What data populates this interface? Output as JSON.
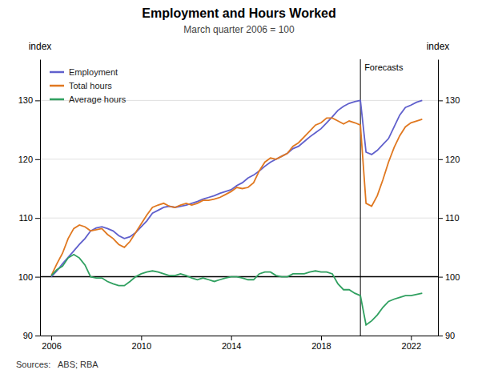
{
  "chart_data": {
    "type": "line",
    "title": "Employment and Hours Worked",
    "subtitle": "March quarter 2006 = 100",
    "ylabel": "index",
    "y2label": "index",
    "source": "Sources:   ABS; RBA",
    "xlim": [
      2005.5,
      2023.2
    ],
    "xticks": [
      2006,
      2010,
      2014,
      2018,
      2022
    ],
    "ylim": [
      90,
      137
    ],
    "yticks": [
      90,
      100,
      110,
      120,
      130
    ],
    "y2lim": [
      90,
      137
    ],
    "y2ticks": [
      90,
      100,
      110,
      120,
      130
    ],
    "grid": true,
    "legend": "top-left",
    "reference_lines": [
      {
        "y": 100
      },
      {
        "x": 2019.75,
        "label": "Forecasts"
      }
    ],
    "x": [
      2006.0,
      2006.25,
      2006.5,
      2006.75,
      2007.0,
      2007.25,
      2007.5,
      2007.75,
      2008.0,
      2008.25,
      2008.5,
      2008.75,
      2009.0,
      2009.25,
      2009.5,
      2009.75,
      2010.0,
      2010.25,
      2010.5,
      2010.75,
      2011.0,
      2011.25,
      2011.5,
      2011.75,
      2012.0,
      2012.25,
      2012.5,
      2012.75,
      2013.0,
      2013.25,
      2013.5,
      2013.75,
      2014.0,
      2014.25,
      2014.5,
      2014.75,
      2015.0,
      2015.25,
      2015.5,
      2015.75,
      2016.0,
      2016.25,
      2016.5,
      2016.75,
      2017.0,
      2017.25,
      2017.5,
      2017.75,
      2018.0,
      2018.25,
      2018.5,
      2018.75,
      2019.0,
      2019.25,
      2019.5,
      2019.75,
      2020.0,
      2020.25,
      2020.5,
      2020.75,
      2021.0,
      2021.25,
      2021.5,
      2021.75,
      2022.0,
      2022.25,
      2022.5
    ],
    "series": [
      {
        "name": "Employment",
        "color": "#6060CC",
        "values": [
          100.0,
          101.0,
          102.2,
          103.3,
          104.4,
          105.5,
          106.5,
          107.8,
          108.3,
          108.5,
          108.2,
          107.8,
          107.0,
          106.5,
          106.8,
          107.5,
          108.5,
          109.5,
          110.8,
          111.3,
          111.8,
          112.0,
          111.8,
          112.0,
          112.2,
          112.5,
          112.8,
          113.2,
          113.5,
          113.8,
          114.2,
          114.5,
          114.8,
          115.5,
          116.0,
          116.8,
          117.3,
          118.0,
          118.8,
          119.5,
          120.0,
          120.5,
          121.0,
          121.8,
          122.2,
          123.0,
          123.8,
          124.5,
          125.2,
          126.2,
          127.2,
          128.3,
          129.0,
          129.5,
          129.8,
          130.0,
          121.2,
          120.8,
          121.5,
          122.5,
          123.5,
          125.5,
          127.5,
          128.8,
          129.2,
          129.7,
          130.0
        ]
      },
      {
        "name": "Total hours",
        "color": "#E07820",
        "values": [
          100.2,
          102.2,
          104.0,
          106.5,
          108.2,
          108.8,
          108.5,
          107.8,
          108.0,
          108.2,
          107.2,
          106.5,
          105.5,
          105.0,
          106.0,
          107.5,
          109.0,
          110.5,
          111.8,
          112.2,
          112.5,
          112.0,
          111.8,
          112.2,
          112.5,
          112.2,
          112.5,
          113.0,
          113.0,
          113.2,
          113.5,
          114.0,
          114.5,
          115.2,
          115.0,
          115.2,
          116.0,
          118.0,
          119.5,
          120.2,
          120.0,
          120.5,
          121.0,
          122.2,
          122.8,
          123.8,
          124.8,
          125.8,
          126.2,
          127.0,
          127.0,
          126.5,
          126.0,
          126.5,
          126.2,
          125.8,
          112.5,
          112.0,
          113.8,
          116.5,
          119.5,
          122.0,
          124.0,
          125.5,
          126.2,
          126.5,
          126.8
        ]
      },
      {
        "name": "Average hours",
        "color": "#30A060",
        "values": [
          100.2,
          101.2,
          101.8,
          103.2,
          103.8,
          103.2,
          102.0,
          100.0,
          99.8,
          99.8,
          99.2,
          98.8,
          98.5,
          98.5,
          99.2,
          100.0,
          100.5,
          100.8,
          101.0,
          100.8,
          100.5,
          100.2,
          100.2,
          100.5,
          100.2,
          99.8,
          99.5,
          99.8,
          99.5,
          99.2,
          99.5,
          99.8,
          100.0,
          100.0,
          99.8,
          99.5,
          99.5,
          100.5,
          100.8,
          100.8,
          100.2,
          100.0,
          100.0,
          100.5,
          100.5,
          100.5,
          100.8,
          101.0,
          100.8,
          100.8,
          100.5,
          98.8,
          97.8,
          97.8,
          97.2,
          96.8,
          91.8,
          92.5,
          93.5,
          94.8,
          95.8,
          96.2,
          96.5,
          96.8,
          96.8,
          97.0,
          97.2
        ]
      }
    ]
  }
}
